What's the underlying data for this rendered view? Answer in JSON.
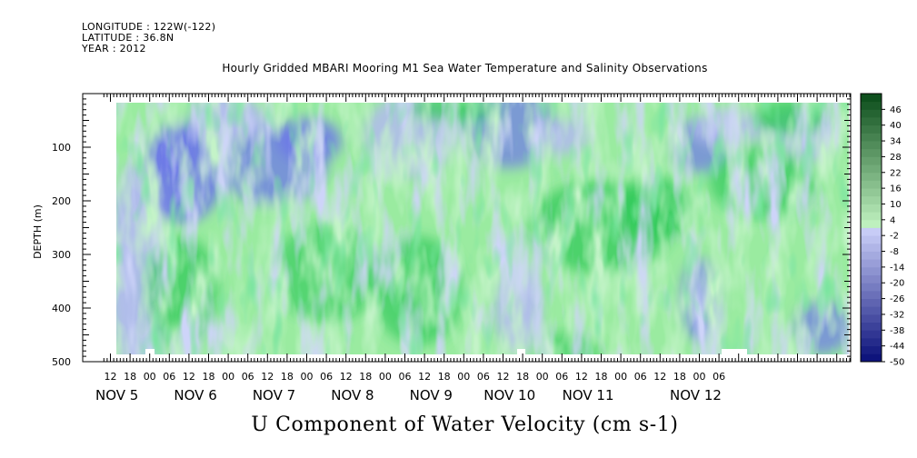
{
  "header": {
    "longitude": "LONGITUDE : 122W(-122)",
    "latitude": "LATITUDE : 36.8N",
    "year": "YEAR : 2012"
  },
  "chart_data": {
    "type": "heatmap",
    "title": "Hourly Gridded MBARI Mooring M1 Sea Water Temperature and Salinity Observations",
    "xlabel": "U Component of Water Velocity (cm s-1)",
    "ylabel": "DEPTH (m)",
    "y_range": [
      500,
      0
    ],
    "y_inverted": true,
    "y_ticks": [
      100,
      200,
      300,
      400,
      500
    ],
    "x_hour_tick_labels": [
      "12",
      "18",
      "00",
      "06",
      "12",
      "18",
      "00",
      "06",
      "12",
      "18",
      "00",
      "06",
      "12",
      "18",
      "00",
      "06",
      "12",
      "18",
      "00",
      "06",
      "12",
      "18",
      "00",
      "06",
      "12",
      "18",
      "00",
      "06",
      "12",
      "18",
      "00",
      "06"
    ],
    "x_day_labels": [
      "NOV 5",
      "NOV 6",
      "NOV 7",
      "NOV 8",
      "NOV 9",
      "NOV 10",
      "NOV 11",
      "NOV 12"
    ],
    "colorbar_labels": [
      "46",
      "40",
      "34",
      "28",
      "22",
      "16",
      "10",
      "4",
      "-2",
      "-8",
      "-14",
      "-20",
      "-26",
      "-32",
      "-38",
      "-44",
      "-50"
    ],
    "colorbar_min": -50,
    "colorbar_max": 52,
    "colorbar_step": 3,
    "colors": {
      "strong_positive": "#0e5a1e",
      "positive": "#31c95a",
      "weak_positive": "#9aeba0",
      "weak_negative": "#b3b8f2",
      "negative": "#6d78e8",
      "strong_negative": "#0a1a8c"
    },
    "depth_bands": [
      {
        "depth_range": [
          20,
          120
        ],
        "dominant_sign": "mixed, patchy negative before NOV 7 and near NOV 9 and NOV 10 18h"
      },
      {
        "depth_range": [
          120,
          250
        ],
        "dominant_sign": "negative before NOV 7, positive NOV 8 to NOV 11"
      },
      {
        "depth_range": [
          250,
          490
        ],
        "dominant_sign": "mostly positive, negative columns near NOV 5 20h and NOV 10 22h and after NOV 12"
      }
    ]
  }
}
